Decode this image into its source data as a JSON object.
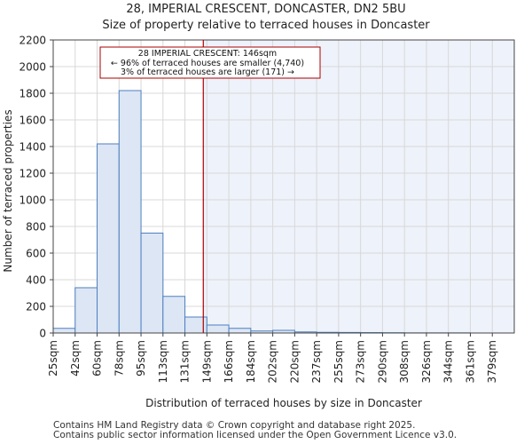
{
  "chart_data": {
    "type": "bar",
    "title": "28, IMPERIAL CRESCENT, DONCASTER, DN2 5BU",
    "subtitle": "Size of property relative to terraced houses in Doncaster",
    "xlabel": "Distribution of terraced houses by size in Doncaster",
    "ylabel": "Number of terraced properties",
    "categories": [
      "25sqm",
      "42sqm",
      "60sqm",
      "78sqm",
      "95sqm",
      "113sqm",
      "131sqm",
      "149sqm",
      "166sqm",
      "184sqm",
      "202sqm",
      "220sqm",
      "237sqm",
      "255sqm",
      "273sqm",
      "290sqm",
      "308sqm",
      "326sqm",
      "344sqm",
      "361sqm",
      "379sqm"
    ],
    "values": [
      35,
      340,
      1420,
      1820,
      750,
      275,
      120,
      60,
      35,
      15,
      20,
      8,
      5,
      4,
      3,
      2,
      1,
      1,
      1,
      0,
      0
    ],
    "ylim": [
      0,
      2200
    ],
    "yticks": [
      0,
      200,
      400,
      600,
      800,
      1000,
      1200,
      1400,
      1600,
      1800,
      2000,
      2200
    ],
    "grid": true,
    "marker": {
      "value_sqm": 146,
      "line1": "28 IMPERIAL CRESCENT: 146sqm",
      "line2": "← 96% of terraced houses are smaller (4,740)",
      "line3": "3% of terraced houses are larger (171) →"
    },
    "colors": {
      "bar_fill": "#dce6f4",
      "bar_edge": "#4f7fbf",
      "highlight_bg": "#eef2fa",
      "marker_line": "#aa0000",
      "grid": "#d8d8d8"
    }
  },
  "footer": {
    "line1": "Contains HM Land Registry data © Crown copyright and database right 2025.",
    "line2": "Contains public sector information licensed under the Open Government Licence v3.0."
  }
}
